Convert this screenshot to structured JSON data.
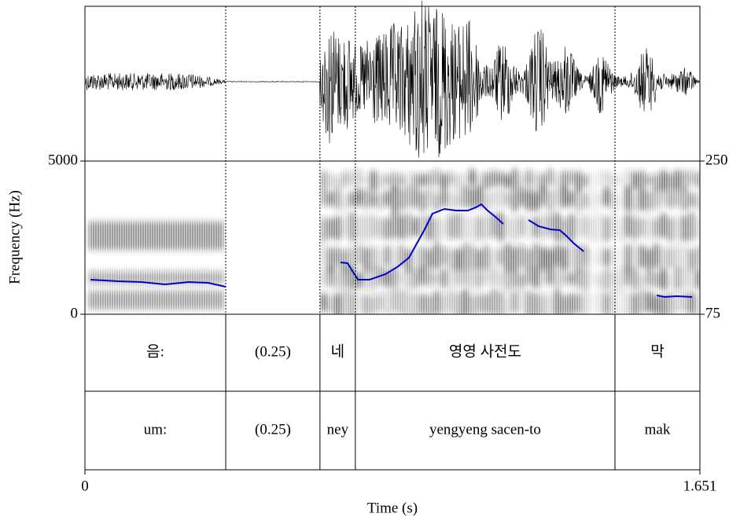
{
  "chart_data": {
    "type": "praat",
    "xlabel": "Time (s)",
    "ylabel": "Frequency (Hz)",
    "xlim": [
      0,
      1.651
    ],
    "xticks": [
      0,
      1.651
    ],
    "ylim": [
      0,
      5000
    ],
    "yticks": [
      0,
      5000
    ],
    "y2lim": [
      75,
      250
    ],
    "y2ticks": [
      75,
      250
    ],
    "pitch": {
      "color": "#0000cc",
      "axis": "y2",
      "x": [
        0.015,
        0.089,
        0.152,
        0.215,
        0.279,
        0.331,
        0.378,
        null,
        0.686,
        0.705,
        0.733,
        0.764,
        0.807,
        0.838,
        0.87,
        0.891,
        0.912,
        0.933,
        0.965,
        0.997,
        1.028,
        1.049,
        1.064,
        1.081,
        1.102,
        1.123,
        null,
        1.191,
        1.218,
        1.25,
        1.275,
        1.292,
        1.313,
        1.339,
        null,
        1.535,
        1.556,
        1.588,
        1.63
      ],
      "values": [
        114.5,
        112.7,
        111.8,
        109.1,
        111.8,
        110.9,
        106.4,
        null,
        134.2,
        133.3,
        114.5,
        114.5,
        120.8,
        128.8,
        139.6,
        155.8,
        171.9,
        189.9,
        195.3,
        193.5,
        193.5,
        197.0,
        200.6,
        193.5,
        186.3,
        178.2,
        null,
        182.7,
        175.5,
        171.9,
        171.0,
        164.7,
        155.8,
        146.8,
        null,
        96.5,
        94.7,
        95.6,
        94.7
      ]
    },
    "boundaries": [
      0.378,
      0.631,
      0.726,
      1.423
    ],
    "tiers": [
      {
        "labels": [
          "음:",
          "(0.25)",
          "네",
          "영영 사전도",
          "막"
        ]
      },
      {
        "labels": [
          "um:",
          "(0.25)",
          "ney",
          "yengyeng sacen-to",
          "mak"
        ]
      }
    ]
  }
}
